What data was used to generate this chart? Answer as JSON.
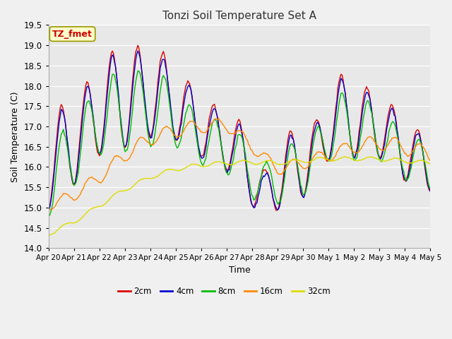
{
  "title": "Tonzi Soil Temperature Set A",
  "xlabel": "Time",
  "ylabel": "Soil Temperature (C)",
  "annotation": "TZ_fmet",
  "ylim": [
    14.0,
    19.5
  ],
  "yticks": [
    14.0,
    14.5,
    15.0,
    15.5,
    16.0,
    16.5,
    17.0,
    17.5,
    18.0,
    18.5,
    19.0,
    19.5
  ],
  "fig_bg_color": "#f0f0f0",
  "plot_bg_color": "#e8e8e8",
  "line_colors": {
    "2cm": "#dd0000",
    "4cm": "#0000cc",
    "8cm": "#00bb00",
    "16cm": "#ff8800",
    "32cm": "#dddd00"
  },
  "legend_labels": [
    "2cm",
    "4cm",
    "8cm",
    "16cm",
    "32cm"
  ],
  "xtick_labels": [
    "Apr 20",
    "Apr 21",
    "Apr 22",
    "Apr 23",
    "Apr 24",
    "Apr 25",
    "Apr 26",
    "Apr 27",
    "Apr 28",
    "Apr 29",
    "Apr 30",
    "May 1",
    "May 2",
    "May 3",
    "May 4",
    "May 5"
  ],
  "n_days": 15,
  "points_per_day": 24
}
